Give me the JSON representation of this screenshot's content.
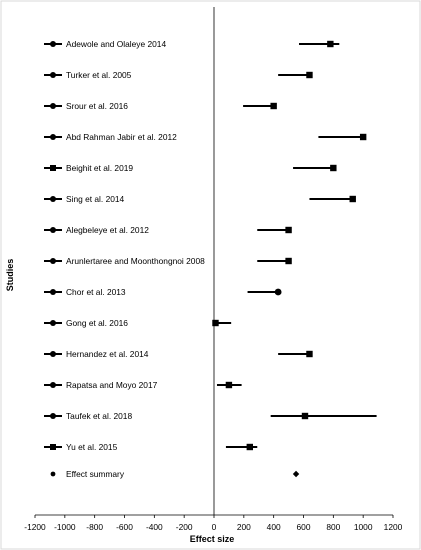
{
  "chart_data": {
    "type": "forest",
    "xlabel": "Effect size",
    "ylabel": "Studies",
    "xlim": [
      -1200,
      1200
    ],
    "xticks": [
      -1200,
      -1000,
      -800,
      -600,
      -400,
      -200,
      0,
      200,
      400,
      600,
      800,
      1000,
      1200
    ],
    "grid": false,
    "legend": "left",
    "studies": [
      {
        "label": "Adewole and Olaleye 2014",
        "marker": "circle",
        "effect": 780,
        "lower": 570,
        "upper": 840,
        "point": "square"
      },
      {
        "label": "Turker et al. 2005",
        "marker": "circle",
        "effect": 640,
        "lower": 430,
        "upper": 660,
        "point": "square"
      },
      {
        "label": "Srour et al. 2016",
        "marker": "circle",
        "effect": 400,
        "lower": 195,
        "upper": 410,
        "point": "square"
      },
      {
        "label": "Abd Rahman Jabir et al. 2012",
        "marker": "circle",
        "effect": 1000,
        "lower": 700,
        "upper": 1010,
        "point": "square"
      },
      {
        "label": "Beighit et al. 2019",
        "marker": "square",
        "effect": 800,
        "lower": 530,
        "upper": 810,
        "point": "square"
      },
      {
        "label": "Sing et al. 2014",
        "marker": "circle",
        "effect": 930,
        "lower": 640,
        "upper": 940,
        "point": "square"
      },
      {
        "label": "Alegbeleye et al. 2012",
        "marker": "circle",
        "effect": 500,
        "lower": 290,
        "upper": 510,
        "point": "square"
      },
      {
        "label": "Arunlertaree and Moonthongnoi 2008",
        "marker": "circle",
        "effect": 500,
        "lower": 290,
        "upper": 510,
        "point": "square"
      },
      {
        "label": "Chor et al. 2013",
        "marker": "circle",
        "effect": 430,
        "lower": 225,
        "upper": 440,
        "point": "circle"
      },
      {
        "label": "Gong et al. 2016",
        "marker": "circle",
        "effect": 10,
        "lower": 0,
        "upper": 115,
        "point": "square"
      },
      {
        "label": "Hernandez et al. 2014",
        "marker": "circle",
        "effect": 640,
        "lower": 430,
        "upper": 660,
        "point": "square"
      },
      {
        "label": "Rapatsa and Moyo 2017",
        "marker": "circle",
        "effect": 100,
        "lower": 20,
        "upper": 185,
        "point": "square"
      },
      {
        "label": "Taufek et al. 2018",
        "marker": "circle",
        "effect": 610,
        "lower": 380,
        "upper": 1090,
        "point": "square"
      },
      {
        "label": "Yu et al. 2015",
        "marker": "square",
        "effect": 240,
        "lower": 80,
        "upper": 290,
        "point": "square"
      }
    ],
    "summary": {
      "label": "Effect summary",
      "effect": 550
    }
  }
}
